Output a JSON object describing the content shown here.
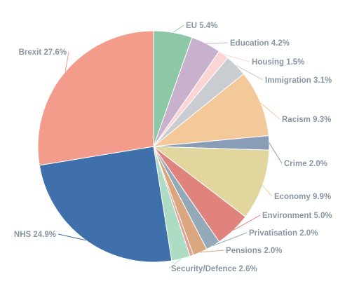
{
  "chart_data": {
    "type": "pie",
    "title": "",
    "legend": "none",
    "slices": [
      {
        "label": "EU",
        "value": 5.4,
        "display": "EU 5.4%",
        "color": "#8cc8a5"
      },
      {
        "label": "Education",
        "value": 4.2,
        "display": "Education 4.2%",
        "color": "#c7b1cc"
      },
      {
        "label": "Housing",
        "value": 1.5,
        "display": "Housing 1.5%",
        "color": "#fbd5d3"
      },
      {
        "label": "Immigration",
        "value": 3.1,
        "display": "Immigration 3.1%",
        "color": "#c9cdd1"
      },
      {
        "label": "Racism",
        "value": 9.3,
        "display": "Racism 9.3%",
        "color": "#f4c99a"
      },
      {
        "label": "Crime",
        "value": 2.0,
        "display": "Crime 2.0%",
        "color": "#8a9db6"
      },
      {
        "label": "Economy",
        "value": 9.9,
        "display": "Economy 9.9%",
        "color": "#e1d79e"
      },
      {
        "label": "Environment",
        "value": 5.0,
        "display": "Environment 5.0%",
        "color": "#e0837c"
      },
      {
        "label": "Privatisation",
        "value": 2.0,
        "display": "Privatisation 2.0%",
        "color": "#93a9b8"
      },
      {
        "label": "Pensions",
        "value": 2.0,
        "display": "Pensions 2.0%",
        "color": "#d9a67e"
      },
      {
        "label": "Other",
        "value": 0.5,
        "display": "",
        "color": "#e3a098"
      },
      {
        "label": "Security/Defence",
        "value": 2.6,
        "display": "Security/Defence 2.6%",
        "color": "#acdcc4"
      },
      {
        "label": "NHS",
        "value": 24.9,
        "display": "NHS 24.9%",
        "color": "#3f70ab"
      },
      {
        "label": "Brexit",
        "value": 27.6,
        "display": "Brexit 27.6%",
        "color": "#f49c8c"
      }
    ]
  }
}
